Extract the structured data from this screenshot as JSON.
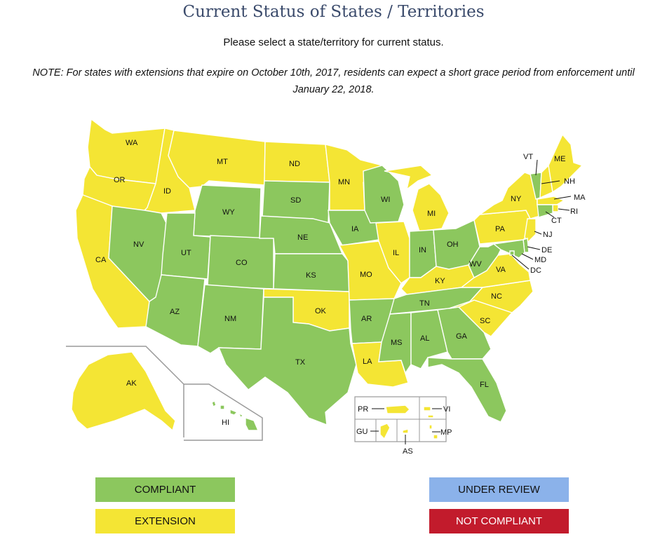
{
  "header": {
    "title": "Current Status of States / Territories",
    "subtitle": "Please select a state/territory for current status.",
    "note_line1": "NOTE: For states with extensions that expire on October 10th, 2017, residents can expect a short grace period from enforcement until",
    "note_line2": "January 22, 2018."
  },
  "colors": {
    "compliant": "#8cc75e",
    "extension": "#f4e534",
    "under_review": "#8bb2ea",
    "not_compliant": "#c21b2c"
  },
  "legend": {
    "compliant": "COMPLIANT",
    "extension": "EXTENSION",
    "under_review": "UNDER REVIEW",
    "not_compliant": "NOT COMPLIANT"
  },
  "map": {
    "states": {
      "WA": {
        "label": "WA",
        "status": "extension"
      },
      "OR": {
        "label": "OR",
        "status": "extension"
      },
      "CA": {
        "label": "CA",
        "status": "extension"
      },
      "ID": {
        "label": "ID",
        "status": "extension"
      },
      "NV": {
        "label": "NV",
        "status": "compliant"
      },
      "MT": {
        "label": "MT",
        "status": "extension"
      },
      "WY": {
        "label": "WY",
        "status": "compliant"
      },
      "UT": {
        "label": "UT",
        "status": "compliant"
      },
      "AZ": {
        "label": "AZ",
        "status": "compliant"
      },
      "CO": {
        "label": "CO",
        "status": "compliant"
      },
      "NM": {
        "label": "NM",
        "status": "compliant"
      },
      "ND": {
        "label": "ND",
        "status": "extension"
      },
      "SD": {
        "label": "SD",
        "status": "compliant"
      },
      "NE": {
        "label": "NE",
        "status": "compliant"
      },
      "KS": {
        "label": "KS",
        "status": "compliant"
      },
      "OK": {
        "label": "OK",
        "status": "extension"
      },
      "TX": {
        "label": "TX",
        "status": "compliant"
      },
      "MN": {
        "label": "MN",
        "status": "extension"
      },
      "IA": {
        "label": "IA",
        "status": "compliant"
      },
      "MO": {
        "label": "MO",
        "status": "extension"
      },
      "AR": {
        "label": "AR",
        "status": "compliant"
      },
      "LA": {
        "label": "LA",
        "status": "extension"
      },
      "WI": {
        "label": "WI",
        "status": "compliant"
      },
      "IL": {
        "label": "IL",
        "status": "extension"
      },
      "MI": {
        "label": "MI",
        "status": "extension"
      },
      "IN": {
        "label": "IN",
        "status": "compliant"
      },
      "OH": {
        "label": "OH",
        "status": "compliant"
      },
      "KY": {
        "label": "KY",
        "status": "extension"
      },
      "TN": {
        "label": "TN",
        "status": "compliant"
      },
      "MS": {
        "label": "MS",
        "status": "compliant"
      },
      "AL": {
        "label": "AL",
        "status": "compliant"
      },
      "GA": {
        "label": "GA",
        "status": "compliant"
      },
      "FL": {
        "label": "FL",
        "status": "compliant"
      },
      "SC": {
        "label": "SC",
        "status": "extension"
      },
      "NC": {
        "label": "NC",
        "status": "extension"
      },
      "VA": {
        "label": "VA",
        "status": "extension"
      },
      "WV": {
        "label": "WV",
        "status": "compliant"
      },
      "PA": {
        "label": "PA",
        "status": "extension"
      },
      "NY": {
        "label": "NY",
        "status": "extension"
      },
      "VT": {
        "label": "VT",
        "status": "compliant"
      },
      "NH": {
        "label": "NH",
        "status": "extension"
      },
      "ME": {
        "label": "ME",
        "status": "extension"
      },
      "MA": {
        "label": "MA",
        "status": "extension"
      },
      "RI": {
        "label": "RI",
        "status": "extension"
      },
      "CT": {
        "label": "CT",
        "status": "compliant"
      },
      "NJ": {
        "label": "NJ",
        "status": "extension"
      },
      "DE": {
        "label": "DE",
        "status": "compliant"
      },
      "MD": {
        "label": "MD",
        "status": "compliant"
      },
      "DC": {
        "label": "DC",
        "status": "compliant"
      },
      "AK": {
        "label": "AK",
        "status": "extension"
      },
      "HI": {
        "label": "HI",
        "status": "compliant"
      },
      "PR": {
        "label": "PR",
        "status": "extension"
      },
      "VI": {
        "label": "VI",
        "status": "extension"
      },
      "GU": {
        "label": "GU",
        "status": "extension"
      },
      "AS": {
        "label": "AS",
        "status": "extension"
      },
      "MP": {
        "label": "MP",
        "status": "extension"
      }
    }
  }
}
